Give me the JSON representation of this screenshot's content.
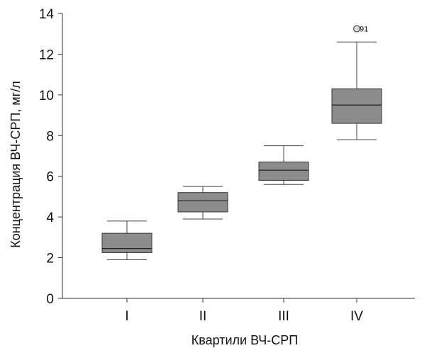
{
  "chart_data": {
    "type": "box",
    "xlabel": "Квартили ВЧ-СРП",
    "ylabel": "Концентрация ВЧ-СРП, мг/л",
    "ylim": [
      0,
      14
    ],
    "yticks": [
      0,
      2,
      4,
      6,
      8,
      10,
      12,
      14
    ],
    "grid": false,
    "box_color": "#8c8c8c",
    "categories": [
      "I",
      "II",
      "III",
      "IV"
    ],
    "boxes": [
      {
        "category": "I",
        "min": 1.9,
        "q1": 2.25,
        "median": 2.45,
        "q3": 3.2,
        "max": 3.8
      },
      {
        "category": "II",
        "min": 3.9,
        "q1": 4.25,
        "median": 4.8,
        "q3": 5.2,
        "max": 5.5
      },
      {
        "category": "III",
        "min": 5.6,
        "q1": 5.8,
        "median": 6.3,
        "q3": 6.7,
        "max": 7.5
      },
      {
        "category": "IV",
        "min": 7.8,
        "q1": 8.6,
        "median": 9.5,
        "q3": 10.3,
        "max": 12.6
      }
    ],
    "outliers": [
      {
        "category": "IV",
        "value": 13.25,
        "label": "91"
      }
    ]
  }
}
